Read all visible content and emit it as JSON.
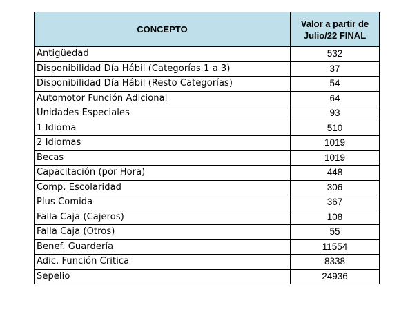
{
  "table": {
    "headers": {
      "concept": "CONCEPTO",
      "value": "Valor a partir de\nJulio/22 FINAL"
    },
    "rows": [
      {
        "concept": "Antigüedad",
        "value": "532"
      },
      {
        "concept": "Disponibilidad Día Hábil (Categorías 1 a 3)",
        "value": "37"
      },
      {
        "concept": "Disponibilidad Día Hábil (Resto Categorías)",
        "value": "54"
      },
      {
        "concept": "Automotor Función Adicional",
        "value": "64"
      },
      {
        "concept": "Unidades Especiales",
        "value": "93"
      },
      {
        "concept": "1 Idioma",
        "value": "510"
      },
      {
        "concept": "2 Idiomas",
        "value": "1019"
      },
      {
        "concept": "Becas",
        "value": "1019"
      },
      {
        "concept": "Capacitación (por Hora)",
        "value": "448"
      },
      {
        "concept": "Comp. Escolaridad",
        "value": "306"
      },
      {
        "concept": "Plus Comida",
        "value": "367"
      },
      {
        "concept": "Falla Caja (Cajeros)",
        "value": "108"
      },
      {
        "concept": "Falla Caja (Otros)",
        "value": "55"
      },
      {
        "concept": "Benef. Guardería",
        "value": "11554"
      },
      {
        "concept": "Adic. Función Critica",
        "value": "8338"
      },
      {
        "concept": "Sepelio",
        "value": "24936"
      }
    ]
  },
  "colors": {
    "header_background": "#bfe0ea",
    "border": "#000000",
    "text": "#000000"
  }
}
